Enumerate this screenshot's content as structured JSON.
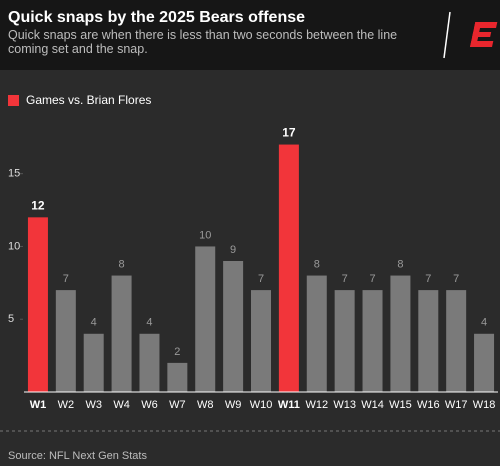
{
  "chart_data": {
    "type": "bar",
    "title": "Quick snaps by the 2025 Bears offense",
    "subtitle": "Quick snaps are when there is less than two seconds between the line coming set and the snap.",
    "legend": {
      "label": "Games vs. Brian Flores",
      "color": "#f2353a"
    },
    "categories": [
      "W1",
      "W2",
      "W3",
      "W4",
      "W6",
      "W7",
      "W8",
      "W9",
      "W10",
      "W11",
      "W12",
      "W13",
      "W14",
      "W15",
      "W16",
      "W17",
      "W18"
    ],
    "values": [
      12,
      7,
      4,
      8,
      4,
      2,
      10,
      9,
      7,
      17,
      8,
      7,
      7,
      8,
      7,
      7,
      4
    ],
    "colors": [
      "#f2353a",
      "#7a7a7a",
      "#7a7a7a",
      "#7a7a7a",
      "#7a7a7a",
      "#7a7a7a",
      "#7a7a7a",
      "#7a7a7a",
      "#7a7a7a",
      "#f2353a",
      "#7a7a7a",
      "#7a7a7a",
      "#7a7a7a",
      "#7a7a7a",
      "#7a7a7a",
      "#7a7a7a",
      "#7a7a7a"
    ],
    "ylim": [
      0,
      18
    ],
    "yticks": [
      5,
      10,
      15
    ],
    "source": "Source: NFL Next Gen Stats"
  }
}
